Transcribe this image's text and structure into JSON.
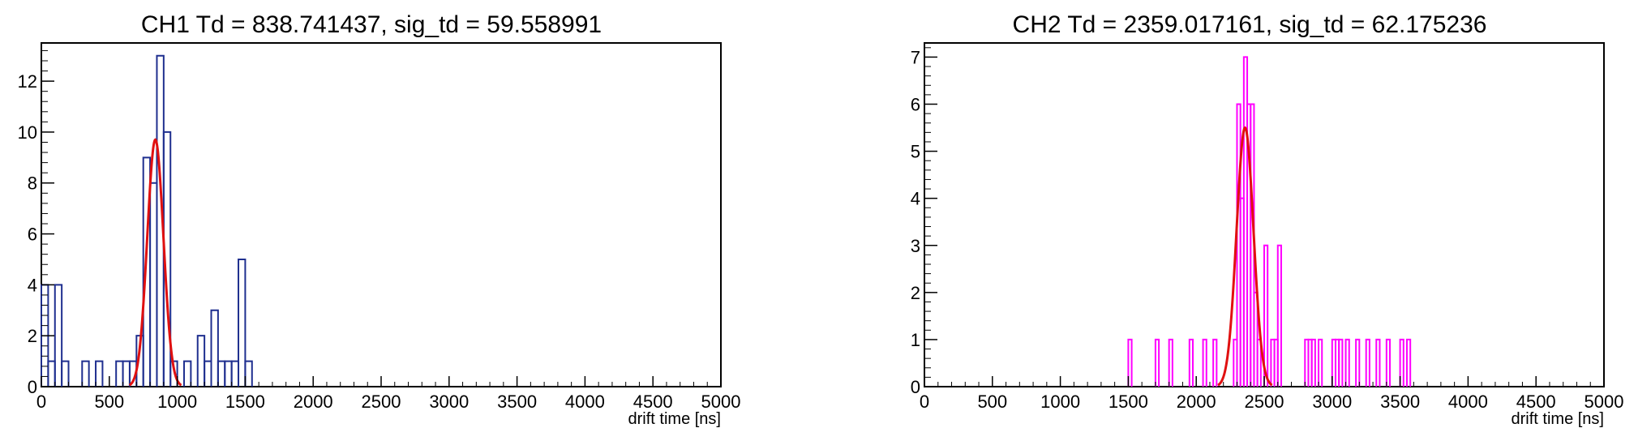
{
  "chart_data": [
    {
      "type": "bar",
      "title": "CH1 Td = 838.741437, sig_td = 59.558991",
      "xlabel": "drift time [ns]",
      "ylabel": "",
      "xlim": [
        0,
        5000
      ],
      "ylim": [
        0,
        13.5
      ],
      "xticks": [
        0,
        500,
        1000,
        1500,
        2000,
        2500,
        3000,
        3500,
        4000,
        4500,
        5000
      ],
      "yticks": [
        0,
        2,
        4,
        6,
        8,
        10,
        12
      ],
      "bin_width": 50,
      "histogram_color": "#1f2f8f",
      "fit_color": "#e01010",
      "grid": false,
      "legend": "none",
      "bins": [
        {
          "x": 0,
          "y": 4
        },
        {
          "x": 50,
          "y": 1
        },
        {
          "x": 100,
          "y": 4
        },
        {
          "x": 150,
          "y": 1
        },
        {
          "x": 300,
          "y": 1
        },
        {
          "x": 400,
          "y": 1
        },
        {
          "x": 550,
          "y": 1
        },
        {
          "x": 600,
          "y": 1
        },
        {
          "x": 650,
          "y": 1
        },
        {
          "x": 700,
          "y": 2
        },
        {
          "x": 750,
          "y": 9
        },
        {
          "x": 800,
          "y": 8
        },
        {
          "x": 850,
          "y": 13
        },
        {
          "x": 900,
          "y": 10
        },
        {
          "x": 950,
          "y": 1
        },
        {
          "x": 1050,
          "y": 1
        },
        {
          "x": 1150,
          "y": 2
        },
        {
          "x": 1200,
          "y": 1
        },
        {
          "x": 1250,
          "y": 3
        },
        {
          "x": 1300,
          "y": 1
        },
        {
          "x": 1350,
          "y": 1
        },
        {
          "x": 1400,
          "y": 1
        },
        {
          "x": 1450,
          "y": 5
        },
        {
          "x": 1500,
          "y": 1
        }
      ],
      "fit": {
        "amplitude": 9.7,
        "mean": 838.741437,
        "sigma": 59.558991
      }
    },
    {
      "type": "bar",
      "title": "CH2 Td = 2359.017161, sig_td = 62.175236",
      "xlabel": "drift time [ns]",
      "ylabel": "",
      "xlim": [
        0,
        5000
      ],
      "ylim": [
        0,
        7.3
      ],
      "xticks": [
        0,
        500,
        1000,
        1500,
        2000,
        2500,
        3000,
        3500,
        4000,
        4500,
        5000
      ],
      "yticks": [
        0,
        1,
        2,
        3,
        4,
        5,
        6,
        7
      ],
      "bin_width": 25,
      "histogram_color": "#ff00ff",
      "fit_color": "#e01010",
      "grid": false,
      "legend": "none",
      "bins": [
        {
          "x": 1500,
          "y": 1
        },
        {
          "x": 1700,
          "y": 1
        },
        {
          "x": 1800,
          "y": 1
        },
        {
          "x": 1950,
          "y": 1
        },
        {
          "x": 2050,
          "y": 1
        },
        {
          "x": 2125,
          "y": 1
        },
        {
          "x": 2275,
          "y": 1
        },
        {
          "x": 2300,
          "y": 6
        },
        {
          "x": 2325,
          "y": 4
        },
        {
          "x": 2350,
          "y": 7
        },
        {
          "x": 2375,
          "y": 6
        },
        {
          "x": 2400,
          "y": 6
        },
        {
          "x": 2425,
          "y": 2
        },
        {
          "x": 2450,
          "y": 1
        },
        {
          "x": 2500,
          "y": 3
        },
        {
          "x": 2550,
          "y": 1
        },
        {
          "x": 2575,
          "y": 1
        },
        {
          "x": 2600,
          "y": 3
        },
        {
          "x": 2800,
          "y": 1
        },
        {
          "x": 2825,
          "y": 1
        },
        {
          "x": 2850,
          "y": 1
        },
        {
          "x": 2900,
          "y": 1
        },
        {
          "x": 3000,
          "y": 1
        },
        {
          "x": 3025,
          "y": 1
        },
        {
          "x": 3050,
          "y": 1
        },
        {
          "x": 3100,
          "y": 1
        },
        {
          "x": 3175,
          "y": 1
        },
        {
          "x": 3250,
          "y": 1
        },
        {
          "x": 3325,
          "y": 1
        },
        {
          "x": 3400,
          "y": 1
        },
        {
          "x": 3500,
          "y": 1
        },
        {
          "x": 3550,
          "y": 1
        }
      ],
      "fit": {
        "amplitude": 5.5,
        "mean": 2359.017161,
        "sigma": 62.175236
      }
    }
  ]
}
